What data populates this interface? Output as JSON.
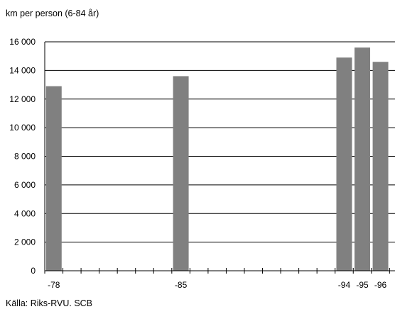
{
  "chart_data": {
    "type": "bar",
    "title": "",
    "ylabel": "km per person (6-84 år)",
    "xlabel": "",
    "source": "Källa: Riks-RVU. SCB",
    "ylim": [
      0,
      16000
    ],
    "yticks": [
      "0",
      "2 000",
      "4 000",
      "6 000",
      "8 000",
      "10 000",
      "12 000",
      "14 000",
      "16 000"
    ],
    "ytick_values": [
      0,
      2000,
      4000,
      6000,
      8000,
      10000,
      12000,
      14000,
      16000
    ],
    "categories": [
      "-78",
      "-85",
      "-94",
      "-95",
      "-96"
    ],
    "x_years": [
      1978,
      1985,
      1994,
      1995,
      1996
    ],
    "x_range": [
      1977.5,
      1996.8
    ],
    "values": [
      12900,
      13600,
      14900,
      15600,
      14600
    ],
    "bar_color": "#808080",
    "grid": true
  }
}
